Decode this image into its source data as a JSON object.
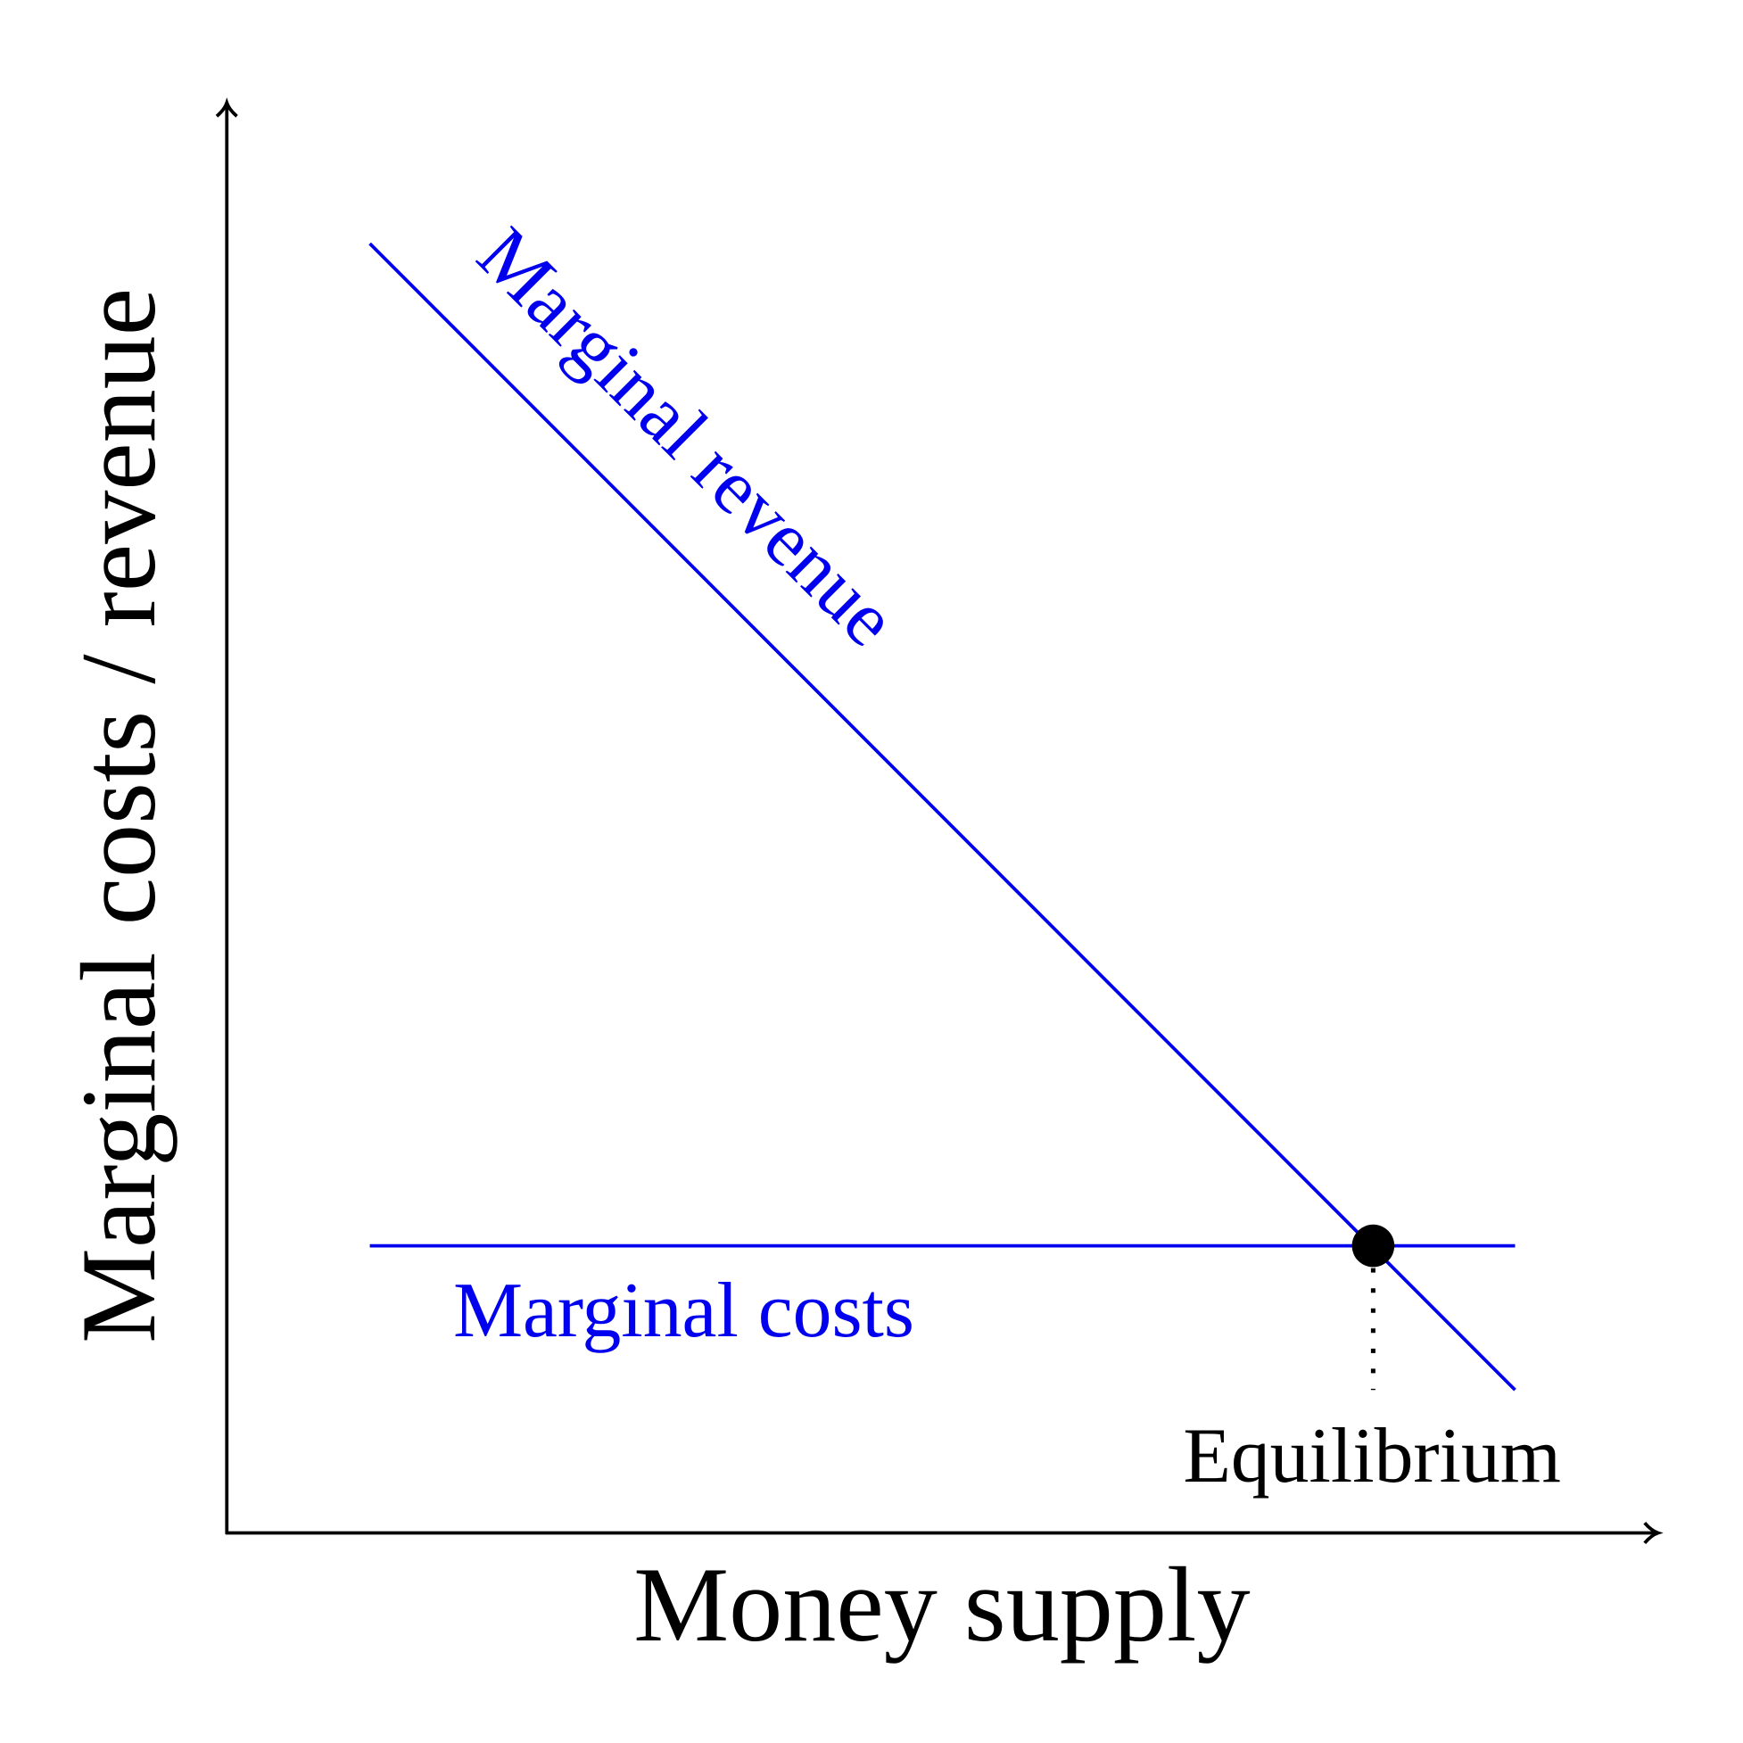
{
  "axes": {
    "x_label": "Money supply",
    "y_label": "Marginal costs / revenue"
  },
  "curves": [
    {
      "label": "Marginal revenue",
      "color": "#0000ee"
    },
    {
      "label": "Marginal costs",
      "color": "#0000ee"
    }
  ],
  "point": {
    "label": "Equilibrium"
  }
}
